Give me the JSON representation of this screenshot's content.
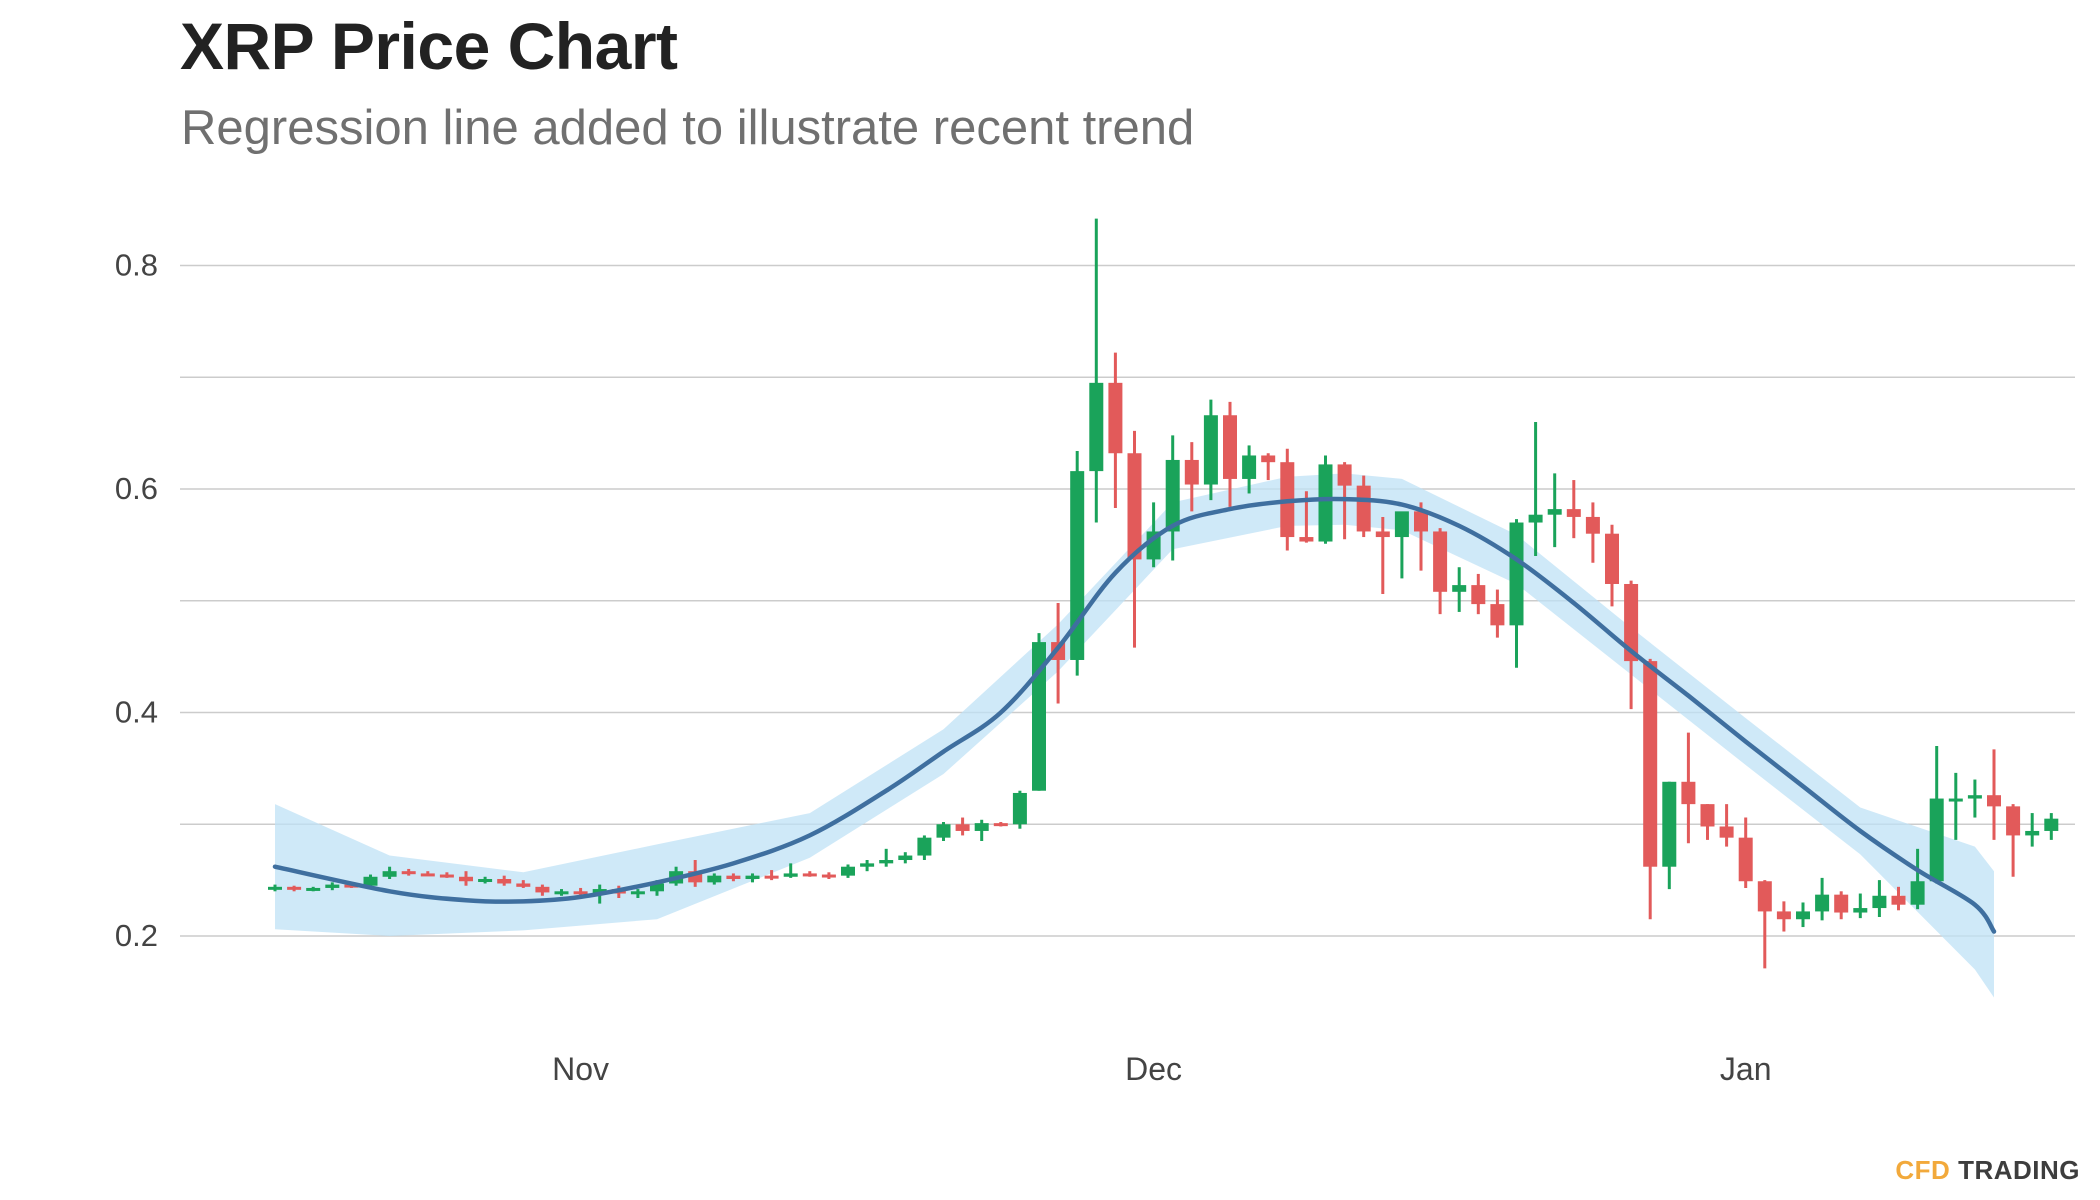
{
  "title": "XRP Price Chart",
  "subtitle": "Regression line added to illustrate recent trend",
  "brand": {
    "part1": "CFD",
    "part2": "TRADING"
  },
  "colors": {
    "up": "#1aa35a",
    "down": "#e25a5a",
    "trend": "#3f6f9f",
    "band": "#bfe2f5",
    "grid": "#cccccc",
    "tick": "#444444"
  },
  "chart_data": {
    "type": "candlestick",
    "title": "XRP Price Chart",
    "subtitle": "Regression line added to illustrate recent trend",
    "ylim": [
      0.09,
      0.85
    ],
    "yticks": [
      0.2,
      0.4,
      0.6,
      0.8
    ],
    "ytick_labels": [
      "0.2",
      "0.4",
      "0.6",
      "0.8"
    ],
    "xticks": [
      {
        "label": "Nov",
        "day": 16
      },
      {
        "label": "Dec",
        "day": 46
      },
      {
        "label": "Jan",
        "day": 77
      }
    ],
    "grid": true,
    "candles": [
      [
        0.243,
        0.246,
        0.24,
        0.244
      ],
      [
        0.244,
        0.245,
        0.24,
        0.242
      ],
      [
        0.242,
        0.244,
        0.24,
        0.243
      ],
      [
        0.243,
        0.248,
        0.241,
        0.246
      ],
      [
        0.246,
        0.248,
        0.243,
        0.245
      ],
      [
        0.245,
        0.255,
        0.244,
        0.253
      ],
      [
        0.253,
        0.262,
        0.251,
        0.258
      ],
      [
        0.258,
        0.26,
        0.254,
        0.256
      ],
      [
        0.256,
        0.258,
        0.254,
        0.255
      ],
      [
        0.255,
        0.257,
        0.252,
        0.253
      ],
      [
        0.253,
        0.258,
        0.245,
        0.249
      ],
      [
        0.249,
        0.253,
        0.247,
        0.251
      ],
      [
        0.251,
        0.254,
        0.245,
        0.247
      ],
      [
        0.247,
        0.25,
        0.243,
        0.244
      ],
      [
        0.244,
        0.246,
        0.236,
        0.239
      ],
      [
        0.239,
        0.242,
        0.236,
        0.24
      ],
      [
        0.24,
        0.243,
        0.236,
        0.238
      ],
      [
        0.238,
        0.246,
        0.229,
        0.242
      ],
      [
        0.242,
        0.245,
        0.234,
        0.238
      ],
      [
        0.238,
        0.242,
        0.234,
        0.24
      ],
      [
        0.24,
        0.25,
        0.236,
        0.247
      ],
      [
        0.247,
        0.262,
        0.245,
        0.258
      ],
      [
        0.258,
        0.268,
        0.244,
        0.248
      ],
      [
        0.248,
        0.256,
        0.246,
        0.254
      ],
      [
        0.254,
        0.256,
        0.249,
        0.251
      ],
      [
        0.251,
        0.256,
        0.248,
        0.254
      ],
      [
        0.254,
        0.259,
        0.25,
        0.253
      ],
      [
        0.253,
        0.265,
        0.252,
        0.256
      ],
      [
        0.256,
        0.258,
        0.253,
        0.255
      ],
      [
        0.255,
        0.257,
        0.251,
        0.254
      ],
      [
        0.254,
        0.264,
        0.252,
        0.262
      ],
      [
        0.262,
        0.268,
        0.258,
        0.265
      ],
      [
        0.265,
        0.278,
        0.262,
        0.268
      ],
      [
        0.268,
        0.275,
        0.265,
        0.272
      ],
      [
        0.272,
        0.29,
        0.268,
        0.288
      ],
      [
        0.288,
        0.302,
        0.285,
        0.3
      ],
      [
        0.3,
        0.306,
        0.29,
        0.294
      ],
      [
        0.294,
        0.304,
        0.285,
        0.301
      ],
      [
        0.301,
        0.302,
        0.298,
        0.3
      ],
      [
        0.3,
        0.33,
        0.296,
        0.328
      ],
      [
        0.33,
        0.471,
        0.33,
        0.463
      ],
      [
        0.463,
        0.498,
        0.408,
        0.447
      ],
      [
        0.447,
        0.634,
        0.433,
        0.616
      ],
      [
        0.616,
        0.842,
        0.57,
        0.695
      ],
      [
        0.695,
        0.722,
        0.583,
        0.632
      ],
      [
        0.632,
        0.652,
        0.458,
        0.537
      ],
      [
        0.537,
        0.588,
        0.53,
        0.562
      ],
      [
        0.562,
        0.648,
        0.536,
        0.626
      ],
      [
        0.626,
        0.642,
        0.58,
        0.604
      ],
      [
        0.604,
        0.68,
        0.59,
        0.666
      ],
      [
        0.666,
        0.678,
        0.584,
        0.609
      ],
      [
        0.609,
        0.639,
        0.596,
        0.63
      ],
      [
        0.63,
        0.632,
        0.608,
        0.624
      ],
      [
        0.624,
        0.636,
        0.545,
        0.557
      ],
      [
        0.557,
        0.598,
        0.552,
        0.553
      ],
      [
        0.553,
        0.63,
        0.551,
        0.622
      ],
      [
        0.622,
        0.624,
        0.555,
        0.603
      ],
      [
        0.603,
        0.612,
        0.557,
        0.562
      ],
      [
        0.562,
        0.575,
        0.506,
        0.557
      ],
      [
        0.557,
        0.575,
        0.52,
        0.58
      ],
      [
        0.58,
        0.588,
        0.527,
        0.562
      ],
      [
        0.562,
        0.565,
        0.488,
        0.508
      ],
      [
        0.508,
        0.53,
        0.49,
        0.514
      ],
      [
        0.514,
        0.524,
        0.488,
        0.497
      ],
      [
        0.497,
        0.51,
        0.467,
        0.478
      ],
      [
        0.478,
        0.573,
        0.44,
        0.57
      ],
      [
        0.57,
        0.66,
        0.54,
        0.577
      ],
      [
        0.577,
        0.614,
        0.548,
        0.582
      ],
      [
        0.582,
        0.608,
        0.556,
        0.575
      ],
      [
        0.575,
        0.588,
        0.534,
        0.56
      ],
      [
        0.56,
        0.568,
        0.495,
        0.515
      ],
      [
        0.515,
        0.518,
        0.403,
        0.446
      ],
      [
        0.446,
        0.448,
        0.215,
        0.262
      ],
      [
        0.262,
        0.338,
        0.242,
        0.338
      ],
      [
        0.338,
        0.382,
        0.283,
        0.318
      ],
      [
        0.318,
        0.318,
        0.286,
        0.298
      ],
      [
        0.298,
        0.318,
        0.28,
        0.288
      ],
      [
        0.288,
        0.306,
        0.243,
        0.249
      ],
      [
        0.249,
        0.25,
        0.171,
        0.222
      ],
      [
        0.222,
        0.231,
        0.204,
        0.215
      ],
      [
        0.215,
        0.23,
        0.208,
        0.222
      ],
      [
        0.222,
        0.252,
        0.214,
        0.237
      ],
      [
        0.237,
        0.24,
        0.215,
        0.221
      ],
      [
        0.221,
        0.238,
        0.216,
        0.225
      ],
      [
        0.225,
        0.25,
        0.217,
        0.236
      ],
      [
        0.236,
        0.244,
        0.223,
        0.228
      ],
      [
        0.228,
        0.278,
        0.224,
        0.249
      ],
      [
        0.249,
        0.37,
        0.247,
        0.323
      ],
      [
        0.323,
        0.346,
        0.286,
        0.323
      ],
      [
        0.323,
        0.34,
        0.306,
        0.326
      ],
      [
        0.326,
        0.367,
        0.286,
        0.316
      ],
      [
        0.316,
        0.318,
        0.253,
        0.29
      ],
      [
        0.29,
        0.31,
        0.28,
        0.294
      ],
      [
        0.294,
        0.31,
        0.286,
        0.305
      ]
    ],
    "trend": [
      [
        0,
        0.262
      ],
      [
        6,
        0.24
      ],
      [
        10,
        0.232
      ],
      [
        13,
        0.231
      ],
      [
        16,
        0.235
      ],
      [
        20,
        0.248
      ],
      [
        24,
        0.265
      ],
      [
        28,
        0.29
      ],
      [
        32,
        0.33
      ],
      [
        35,
        0.365
      ],
      [
        38,
        0.4
      ],
      [
        41,
        0.458
      ],
      [
        44,
        0.525
      ],
      [
        47,
        0.567
      ],
      [
        50,
        0.582
      ],
      [
        53,
        0.589
      ],
      [
        56,
        0.591
      ],
      [
        59,
        0.586
      ],
      [
        62,
        0.567
      ],
      [
        65,
        0.537
      ],
      [
        68,
        0.498
      ],
      [
        71,
        0.455
      ],
      [
        74,
        0.415
      ],
      [
        77,
        0.374
      ],
      [
        80,
        0.334
      ],
      [
        83,
        0.294
      ],
      [
        86,
        0.259
      ],
      [
        89,
        0.228
      ],
      [
        90,
        0.204
      ]
    ],
    "band": [
      [
        0,
        0.206,
        0.318
      ],
      [
        6,
        0.2,
        0.272
      ],
      [
        13,
        0.205,
        0.257
      ],
      [
        20,
        0.215,
        0.282
      ],
      [
        28,
        0.27,
        0.31
      ],
      [
        35,
        0.345,
        0.385
      ],
      [
        41,
        0.437,
        0.479
      ],
      [
        47,
        0.546,
        0.588
      ],
      [
        53,
        0.567,
        0.611
      ],
      [
        56,
        0.568,
        0.614
      ],
      [
        59,
        0.563,
        0.609
      ],
      [
        65,
        0.515,
        0.559
      ],
      [
        71,
        0.434,
        0.476
      ],
      [
        77,
        0.353,
        0.395
      ],
      [
        83,
        0.273,
        0.315
      ],
      [
        89,
        0.17,
        0.28
      ],
      [
        90,
        0.145,
        0.258
      ]
    ]
  }
}
